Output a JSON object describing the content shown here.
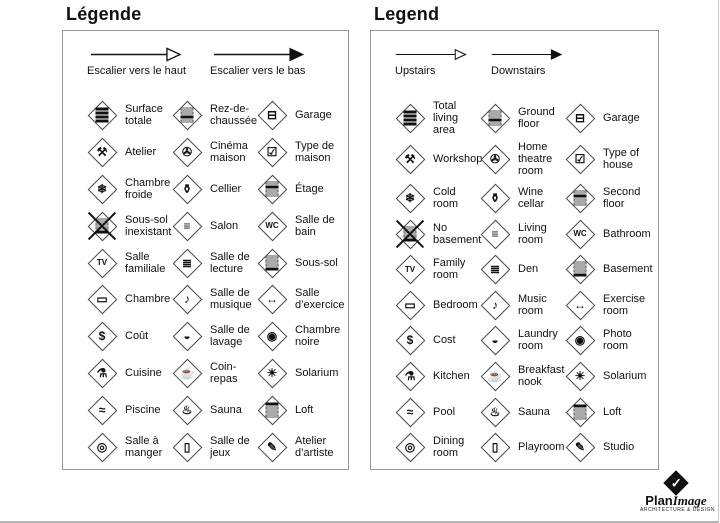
{
  "fr": {
    "title": "Légende",
    "arrows": [
      {
        "name": "stairs-up",
        "style": "outline",
        "label": "Escalier vers le haut"
      },
      {
        "name": "stairs-down",
        "style": "filled",
        "label": "Escalier vers le bas"
      }
    ],
    "items": [
      {
        "name": "total-living-area",
        "floors": "all",
        "label": "Surface\ntotale"
      },
      {
        "name": "ground-floor",
        "floors": 2,
        "label": "Rez-de-\nchaussée"
      },
      {
        "name": "garage",
        "glyph": "⊟",
        "label": "Garage"
      },
      {
        "name": "workshop",
        "glyph": "⚒",
        "label": "Atelier"
      },
      {
        "name": "home-theatre-room",
        "glyph": "✇",
        "label": "Cinéma\nmaison"
      },
      {
        "name": "type-of-house",
        "glyph": "☑",
        "label": "Type de\nmaison"
      },
      {
        "name": "cold-room",
        "glyph": "❄",
        "label": "Chambre\nfroide"
      },
      {
        "name": "wine-cellar",
        "glyph": "⚱",
        "label": "Cellier"
      },
      {
        "name": "second-floor",
        "floors": 1,
        "label": "Étage"
      },
      {
        "name": "no-basement",
        "floors": 3,
        "cross": true,
        "label": "Sous-sol\ninexistant"
      },
      {
        "name": "living-room",
        "glyph": "≡",
        "label": "Salon"
      },
      {
        "name": "bathroom",
        "glyph": "WC",
        "label": "Salle de\nbain"
      },
      {
        "name": "family-room",
        "glyph": "TV",
        "label": "Salle\nfamiliale"
      },
      {
        "name": "den",
        "glyph": "≣",
        "label": "Salle de\nlecture"
      },
      {
        "name": "basement",
        "floors": 3,
        "label": "Sous-sol"
      },
      {
        "name": "bedroom",
        "glyph": "▭",
        "label": "Chambre"
      },
      {
        "name": "music-room",
        "glyph": "♪",
        "label": "Salle de\nmusique"
      },
      {
        "name": "exercise-room",
        "glyph": "↔",
        "label": "Salle\nd’exercice"
      },
      {
        "name": "cost",
        "glyph": "$",
        "label": "Coût"
      },
      {
        "name": "laundry-room",
        "glyph": "◒",
        "label": "Salle de\nlavage"
      },
      {
        "name": "photo-room",
        "glyph": "◉",
        "label": "Chambre\nnoire"
      },
      {
        "name": "kitchen",
        "glyph": "⚗",
        "label": "Cuisine"
      },
      {
        "name": "breakfast-nook",
        "glyph": "☕",
        "label": "Coin-\nrepas"
      },
      {
        "name": "solarium",
        "glyph": "☀",
        "label": "Solarium"
      },
      {
        "name": "pool",
        "glyph": "≈",
        "label": "Piscine"
      },
      {
        "name": "sauna",
        "glyph": "♨",
        "label": "Sauna"
      },
      {
        "name": "loft",
        "floors": 0,
        "label": "Loft"
      },
      {
        "name": "dining-room",
        "glyph": "◎",
        "label": "Salle à\nmanger"
      },
      {
        "name": "playroom",
        "glyph": "▯",
        "label": "Salle de\njeux"
      },
      {
        "name": "studio",
        "glyph": "✎",
        "label": "Atelier\nd’artiste"
      }
    ]
  },
  "en": {
    "title": "Legend",
    "arrows": [
      {
        "name": "stairs-up",
        "style": "outline",
        "label": "Upstairs"
      },
      {
        "name": "stairs-down",
        "style": "filled",
        "label": "Downstairs"
      }
    ],
    "items": [
      {
        "name": "total-living-area",
        "floors": "all",
        "label": "Total\nliving\narea"
      },
      {
        "name": "ground-floor",
        "floors": 2,
        "label": "Ground\nfloor"
      },
      {
        "name": "garage",
        "glyph": "⊟",
        "label": "Garage"
      },
      {
        "name": "workshop",
        "glyph": "⚒",
        "label": "Workshop"
      },
      {
        "name": "home-theatre-room",
        "glyph": "✇",
        "label": "Home\ntheatre\nroom"
      },
      {
        "name": "type-of-house",
        "glyph": "☑",
        "label": "Type of\nhouse"
      },
      {
        "name": "cold-room",
        "glyph": "❄",
        "label": "Cold\nroom"
      },
      {
        "name": "wine-cellar",
        "glyph": "⚱",
        "label": "Wine\ncellar"
      },
      {
        "name": "second-floor",
        "floors": 1,
        "label": "Second\nfloor"
      },
      {
        "name": "no-basement",
        "floors": 3,
        "cross": true,
        "label": "No\nbasement"
      },
      {
        "name": "living-room",
        "glyph": "≡",
        "label": "Living\nroom"
      },
      {
        "name": "bathroom",
        "glyph": "WC",
        "label": "Bathroom"
      },
      {
        "name": "family-room",
        "glyph": "TV",
        "label": "Family\nroom"
      },
      {
        "name": "den",
        "glyph": "≣",
        "label": "Den"
      },
      {
        "name": "basement",
        "floors": 3,
        "label": "Basement"
      },
      {
        "name": "bedroom",
        "glyph": "▭",
        "label": "Bedroom"
      },
      {
        "name": "music-room",
        "glyph": "♪",
        "label": "Music\nroom"
      },
      {
        "name": "exercise-room",
        "glyph": "↔",
        "label": "Exercise\nroom"
      },
      {
        "name": "cost",
        "glyph": "$",
        "label": "Cost"
      },
      {
        "name": "laundry-room",
        "glyph": "◒",
        "label": "Laundry\nroom"
      },
      {
        "name": "photo-room",
        "glyph": "◉",
        "label": "Photo\nroom"
      },
      {
        "name": "kitchen",
        "glyph": "⚗",
        "label": "Kitchen"
      },
      {
        "name": "breakfast-nook",
        "glyph": "☕",
        "label": "Breakfast\nnook"
      },
      {
        "name": "solarium",
        "glyph": "☀",
        "label": "Solarium"
      },
      {
        "name": "pool",
        "glyph": "≈",
        "label": "Pool"
      },
      {
        "name": "sauna",
        "glyph": "♨",
        "label": "Sauna"
      },
      {
        "name": "loft",
        "floors": 0,
        "label": "Loft"
      },
      {
        "name": "dining-room",
        "glyph": "◎",
        "label": "Dining\nroom"
      },
      {
        "name": "playroom",
        "glyph": "▯",
        "label": "Playroom"
      },
      {
        "name": "studio",
        "glyph": "✎",
        "label": "Studio"
      }
    ]
  },
  "logo": {
    "bold": "Plan",
    "italic": "Image",
    "tagline": "ARCHITECTURE & DESIGN",
    "check_icon": "✓"
  }
}
